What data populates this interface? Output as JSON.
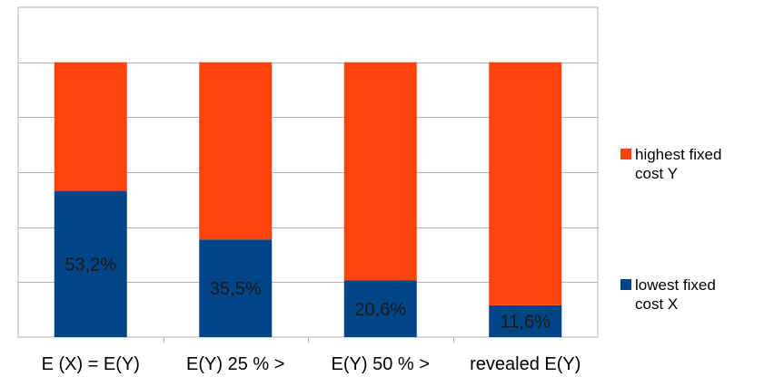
{
  "chart_data": {
    "type": "bar",
    "stacked": true,
    "percent_stacked": true,
    "categories": [
      "E (X) = E(Y)",
      "E(Y) 25 % >",
      "E(Y) 50 % >",
      "revealed E(Y)"
    ],
    "series": [
      {
        "name": "lowest fixed cost X",
        "values": [
          53.2,
          35.5,
          20.6,
          11.6
        ],
        "labels": [
          "53,2%",
          "35,5%",
          "20,6%",
          "11,6%"
        ],
        "color": "#004586"
      },
      {
        "name": "highest fixed cost Y",
        "values": [
          46.8,
          64.5,
          79.4,
          88.4
        ],
        "color": "#ff420e"
      }
    ],
    "ylim": [
      0,
      120
    ],
    "grid": true,
    "legend_position": "right",
    "legend": [
      {
        "line1": "highest fixed",
        "line2": "cost Y",
        "color": "#ff420e"
      },
      {
        "line1": "lowest fixed",
        "line2": "cost X",
        "color": "#004586"
      }
    ]
  }
}
